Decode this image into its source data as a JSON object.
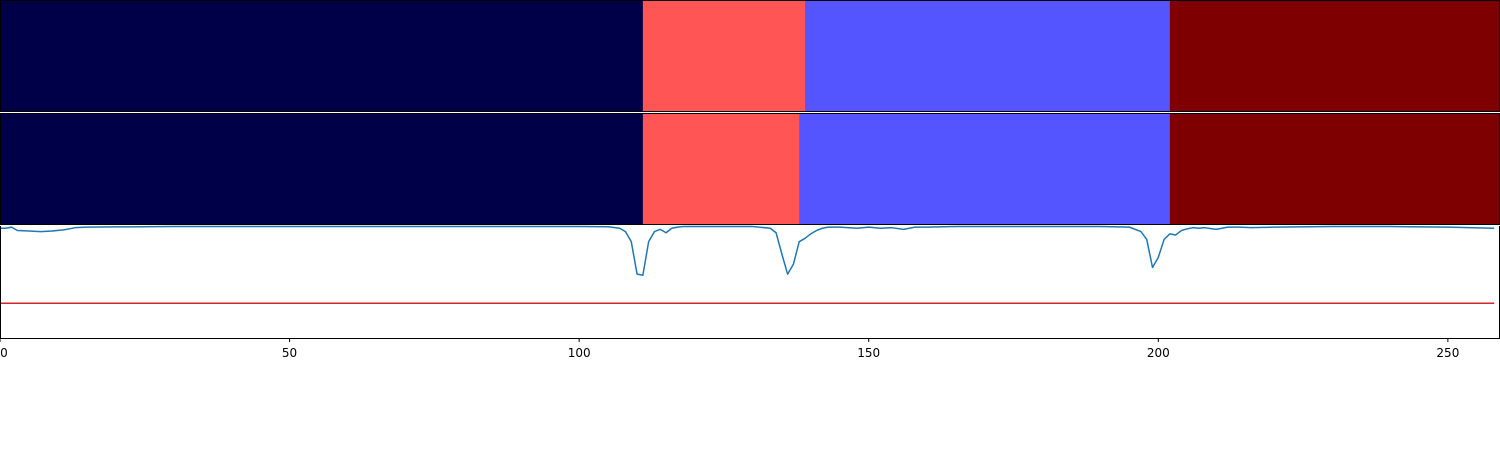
{
  "chart_data": [
    {
      "type": "heatmap",
      "title": "",
      "xlabel": "",
      "ylabel": "",
      "xlim": [
        0,
        259
      ],
      "segments": [
        {
          "start": 0,
          "end": 111,
          "color": "#000048"
        },
        {
          "start": 111,
          "end": 139,
          "color": "#ff5555"
        },
        {
          "start": 139,
          "end": 202,
          "color": "#5555ff"
        },
        {
          "start": 202,
          "end": 259,
          "color": "#7f0000"
        }
      ]
    },
    {
      "type": "heatmap",
      "title": "",
      "xlabel": "",
      "ylabel": "",
      "xlim": [
        0,
        259
      ],
      "segments": [
        {
          "start": 0,
          "end": 111,
          "color": "#000048"
        },
        {
          "start": 111,
          "end": 138,
          "color": "#ff5555"
        },
        {
          "start": 138,
          "end": 202,
          "color": "#5555ff"
        },
        {
          "start": 202,
          "end": 259,
          "color": "#7f0000"
        }
      ]
    },
    {
      "type": "line",
      "title": "",
      "xlabel": "",
      "ylabel": "",
      "xlim": [
        0,
        259
      ],
      "ylim": [
        0,
        1
      ],
      "grid": false,
      "x_ticks": [
        0,
        50,
        100,
        150,
        200,
        250
      ],
      "x_tick_labels": [
        "0",
        "50",
        "100",
        "150",
        "200",
        "250"
      ],
      "threshold": 0.31,
      "threshold_color": "#d62728",
      "series_color": "#1f77b4",
      "x": [
        0,
        1,
        2,
        3,
        5,
        7,
        9,
        11,
        13,
        15,
        20,
        30,
        40,
        60,
        80,
        100,
        105,
        107,
        108,
        109,
        110,
        111,
        112,
        113,
        114,
        115,
        116,
        117,
        118,
        120,
        125,
        130,
        133,
        134,
        135,
        136,
        137,
        138,
        139,
        140,
        141,
        142,
        143,
        145,
        148,
        150,
        152,
        154,
        156,
        158,
        160,
        165,
        170,
        180,
        190,
        195,
        197,
        198,
        199,
        200,
        201,
        202,
        203,
        204,
        205,
        206,
        207,
        208,
        210,
        212,
        214,
        216,
        220,
        230,
        240,
        250,
        258
      ],
      "y": [
        0.98,
        0.98,
        0.99,
        0.96,
        0.955,
        0.95,
        0.955,
        0.965,
        0.985,
        0.99,
        0.992,
        0.995,
        0.995,
        0.996,
        0.996,
        0.995,
        0.993,
        0.98,
        0.95,
        0.86,
        0.57,
        0.56,
        0.86,
        0.95,
        0.97,
        0.94,
        0.98,
        0.99,
        0.995,
        0.996,
        0.996,
        0.995,
        0.98,
        0.94,
        0.75,
        0.57,
        0.66,
        0.86,
        0.89,
        0.93,
        0.96,
        0.98,
        0.99,
        0.99,
        0.98,
        0.99,
        0.98,
        0.985,
        0.97,
        0.99,
        0.99,
        0.995,
        0.996,
        0.996,
        0.995,
        0.99,
        0.95,
        0.88,
        0.63,
        0.72,
        0.88,
        0.93,
        0.92,
        0.96,
        0.975,
        0.985,
        0.98,
        0.985,
        0.97,
        0.99,
        0.99,
        0.985,
        0.99,
        0.995,
        0.995,
        0.99,
        0.98
      ]
    }
  ]
}
